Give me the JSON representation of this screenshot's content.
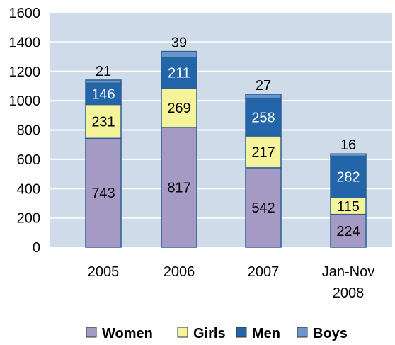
{
  "chart_data": {
    "type": "bar",
    "stacked": true,
    "categories": [
      "2005",
      "2006",
      "2007",
      "Jan-Nov\n2008"
    ],
    "series": [
      {
        "name": "Women",
        "color": "#a59ac4",
        "label_color": "#000000",
        "values": [
          743,
          817,
          542,
          224
        ]
      },
      {
        "name": "Girls",
        "color": "#f6f49a",
        "label_color": "#000000",
        "values": [
          231,
          269,
          217,
          115
        ]
      },
      {
        "name": "Men",
        "color": "#2265a8",
        "label_color": "#ffffff",
        "values": [
          146,
          211,
          258,
          282
        ]
      },
      {
        "name": "Boys",
        "color": "#6a96cc",
        "label_color": "#000000",
        "values": [
          21,
          39,
          27,
          16
        ]
      }
    ],
    "ylim": [
      0,
      1600
    ],
    "yticks": [
      0,
      200,
      400,
      600,
      800,
      1000,
      1200,
      1400,
      1600
    ],
    "grid": true,
    "legend_position": "bottom",
    "plot_background": "#cfdbe9"
  }
}
